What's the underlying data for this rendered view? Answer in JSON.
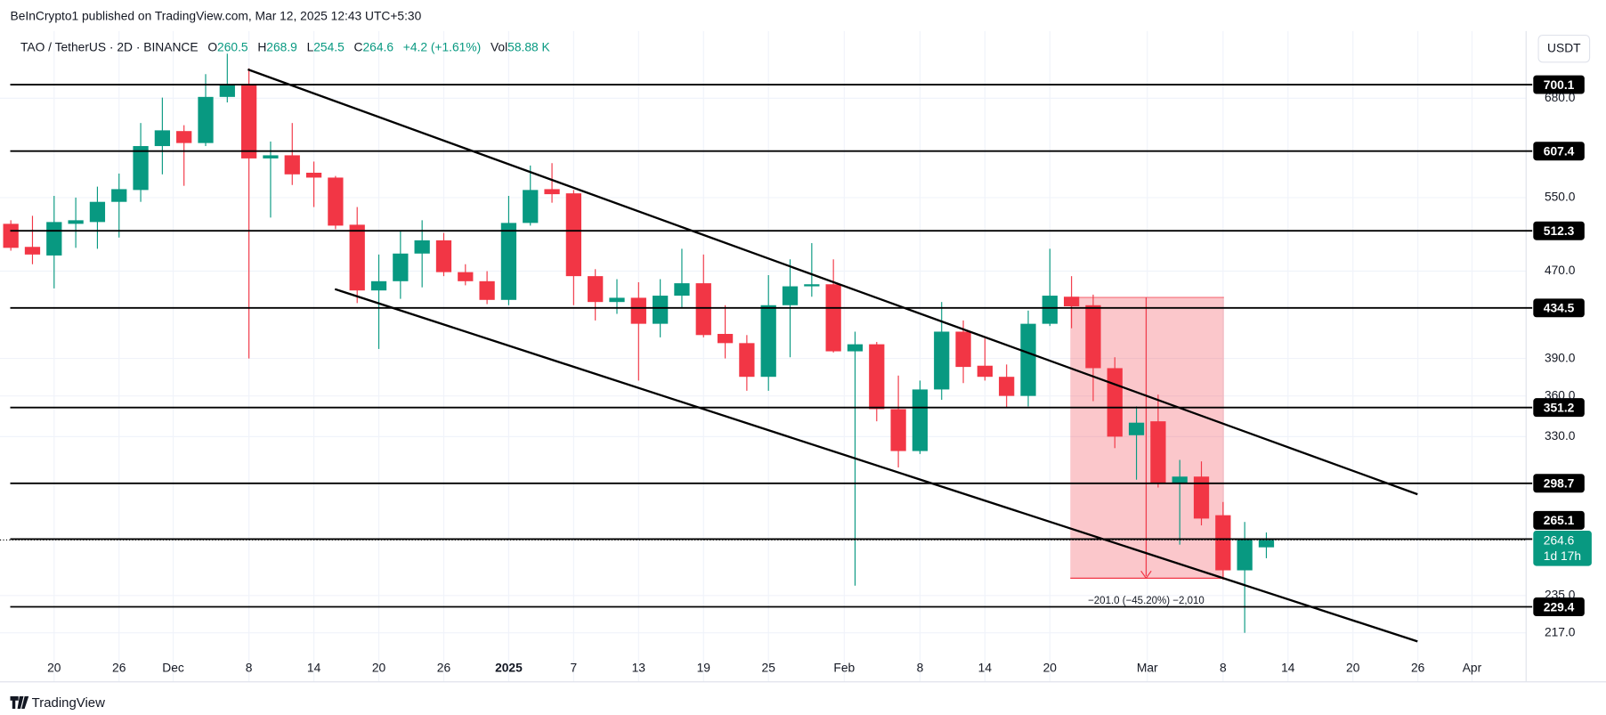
{
  "chart_data": {
    "type": "candlestick",
    "attribution": "BeInCrypto1 published on TradingView.com, Mar 12, 2025 12:43 UTC+5:30",
    "title": "TAO / TetherUS · 2D · BINANCE",
    "header_labels": [
      "O",
      "H",
      "L",
      "C"
    ],
    "change": "+4.2 (+1.61%)",
    "volume_label": "Vol",
    "volume": "58.88 K",
    "currency": "USDT",
    "watermark": "TradingView",
    "log_scale": true,
    "grid": true,
    "up_color": "#089981",
    "down_color": "#f23645",
    "open": [
      520,
      495,
      486,
      520,
      522,
      545,
      559,
      614,
      634,
      618,
      682,
      700,
      598,
      602,
      580,
      574,
      519,
      451,
      460,
      488,
      502,
      469,
      460,
      442,
      521,
      560,
      555,
      465,
      440,
      444,
      420,
      446,
      458,
      411,
      403,
      375,
      437,
      455,
      457,
      396,
      402,
      350,
      320,
      365,
      413,
      384,
      375,
      360,
      420,
      445,
      437,
      382,
      331,
      341,
      299,
      303,
      279,
      248,
      260.5
    ],
    "high": [
      524,
      529,
      552,
      550,
      563,
      579,
      645,
      681,
      642,
      716,
      748,
      725,
      620,
      645,
      594,
      576,
      539,
      487,
      513,
      524,
      510,
      477,
      470,
      552,
      589,
      592,
      559,
      472,
      462,
      459,
      462,
      493,
      487,
      437,
      410,
      466,
      482,
      499,
      482,
      413,
      404,
      376,
      372,
      440,
      423,
      407,
      385,
      432,
      493,
      465,
      447,
      391,
      352,
      361,
      314,
      313,
      287,
      275,
      268.9
    ],
    "low": [
      491,
      477,
      453,
      494,
      493,
      505,
      545,
      578,
      564,
      614,
      674,
      390,
      527,
      565,
      539,
      514,
      439,
      398,
      443,
      454,
      465,
      456,
      438,
      437,
      518,
      544,
      437,
      423,
      429,
      372,
      408,
      434,
      408,
      390,
      364,
      364,
      391,
      445,
      395,
      240,
      341,
      309,
      318,
      357,
      370,
      372,
      351,
      352,
      418,
      416,
      356,
      322,
      301,
      296,
      262,
      273,
      243,
      217,
      254.5
    ],
    "close": [
      494,
      487,
      522,
      524,
      545,
      560,
      614,
      635,
      618,
      682,
      700,
      598,
      602,
      578,
      574,
      518,
      451,
      460,
      488,
      502,
      469,
      460,
      442,
      521,
      559,
      554,
      465,
      440,
      444,
      420,
      446,
      458,
      410,
      403,
      375,
      437,
      455,
      457,
      396,
      402,
      350,
      320,
      365,
      413,
      383,
      375,
      360,
      420,
      446,
      436,
      382,
      330,
      340,
      299,
      303,
      277,
      248,
      265,
      264.6
    ],
    "countdown": "1d 17h",
    "levels": [
      700.1,
      607.4,
      512.3,
      434.5,
      351.2,
      298.7,
      265.1,
      229.4
    ],
    "measure_label": "−201.0 (−45.20%) −2,010",
    "xlim": [
      -0.5,
      70
    ],
    "xticks": [
      {
        "value": 2,
        "label": "20"
      },
      {
        "value": 5,
        "label": "26"
      },
      {
        "value": 7.5,
        "label": "Dec"
      },
      {
        "value": 11,
        "label": "8"
      },
      {
        "value": 14,
        "label": "14"
      },
      {
        "value": 17,
        "label": "20"
      },
      {
        "value": 20,
        "label": "26"
      },
      {
        "value": 23,
        "label": "2025"
      },
      {
        "value": 26,
        "label": "7"
      },
      {
        "value": 29,
        "label": "13"
      },
      {
        "value": 32,
        "label": "19"
      },
      {
        "value": 35,
        "label": "25"
      },
      {
        "value": 38.5,
        "label": "Feb"
      },
      {
        "value": 42,
        "label": "8"
      },
      {
        "value": 45,
        "label": "14"
      },
      {
        "value": 48,
        "label": "20"
      },
      {
        "value": 52.5,
        "label": "Mar"
      },
      {
        "value": 56,
        "label": "8"
      },
      {
        "value": 59,
        "label": "14"
      },
      {
        "value": 62,
        "label": "20"
      },
      {
        "value": 65,
        "label": "26"
      },
      {
        "value": 67.5,
        "label": "Apr"
      }
    ],
    "ylim": [
      207,
      785
    ],
    "yticks": [
      {
        "value": 680,
        "label": "680.0"
      },
      {
        "value": 550,
        "label": "550.0"
      },
      {
        "value": 470,
        "label": "470.0"
      },
      {
        "value": 390,
        "label": "390.0"
      },
      {
        "value": 360,
        "label": "360.0"
      },
      {
        "value": 330,
        "label": "330.0"
      },
      {
        "value": 235,
        "label": "235.0"
      },
      {
        "value": 217,
        "label": "217.0"
      }
    ]
  }
}
